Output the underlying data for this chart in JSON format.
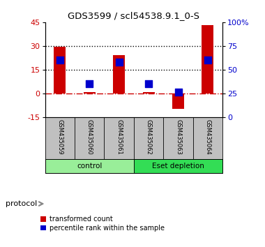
{
  "title": "GDS3599 / scl54538.9.1_0-S",
  "samples": [
    "GSM435059",
    "GSM435060",
    "GSM435061",
    "GSM435062",
    "GSM435063",
    "GSM435064"
  ],
  "red_values": [
    29.5,
    1.0,
    24.0,
    0.8,
    -10.0,
    43.0
  ],
  "blue_pct": [
    60.0,
    35.0,
    58.0,
    35.0,
    26.0,
    60.0
  ],
  "ylim_left": [
    -15,
    45
  ],
  "ylim_right": [
    0,
    100
  ],
  "yticks_left": [
    -15,
    0,
    15,
    30,
    45
  ],
  "yticks_right": [
    0,
    25,
    50,
    75,
    100
  ],
  "ytick_labels_right": [
    "0",
    "25",
    "50",
    "75",
    "100%"
  ],
  "hlines": [
    15.0,
    30.0
  ],
  "dashed_hline": 0.0,
  "groups": [
    {
      "label": "control",
      "span": [
        0,
        3
      ],
      "color": "#99EE99"
    },
    {
      "label": "Eset depletion",
      "span": [
        3,
        6
      ],
      "color": "#33DD55"
    }
  ],
  "protocol_label": "protocol",
  "legend_red": "transformed count",
  "legend_blue": "percentile rank within the sample",
  "red_color": "#CC0000",
  "blue_color": "#0000CC",
  "bar_width": 0.4,
  "blue_marker_size": 45,
  "tick_label_color_left": "#CC0000",
  "tick_label_color_right": "#0000CC",
  "bg_color_main": "#FFFFFF",
  "bg_color_labels": "#C0C0C0",
  "bg_color_group_light": "#99EE99",
  "bg_color_group_dark": "#33DD55"
}
